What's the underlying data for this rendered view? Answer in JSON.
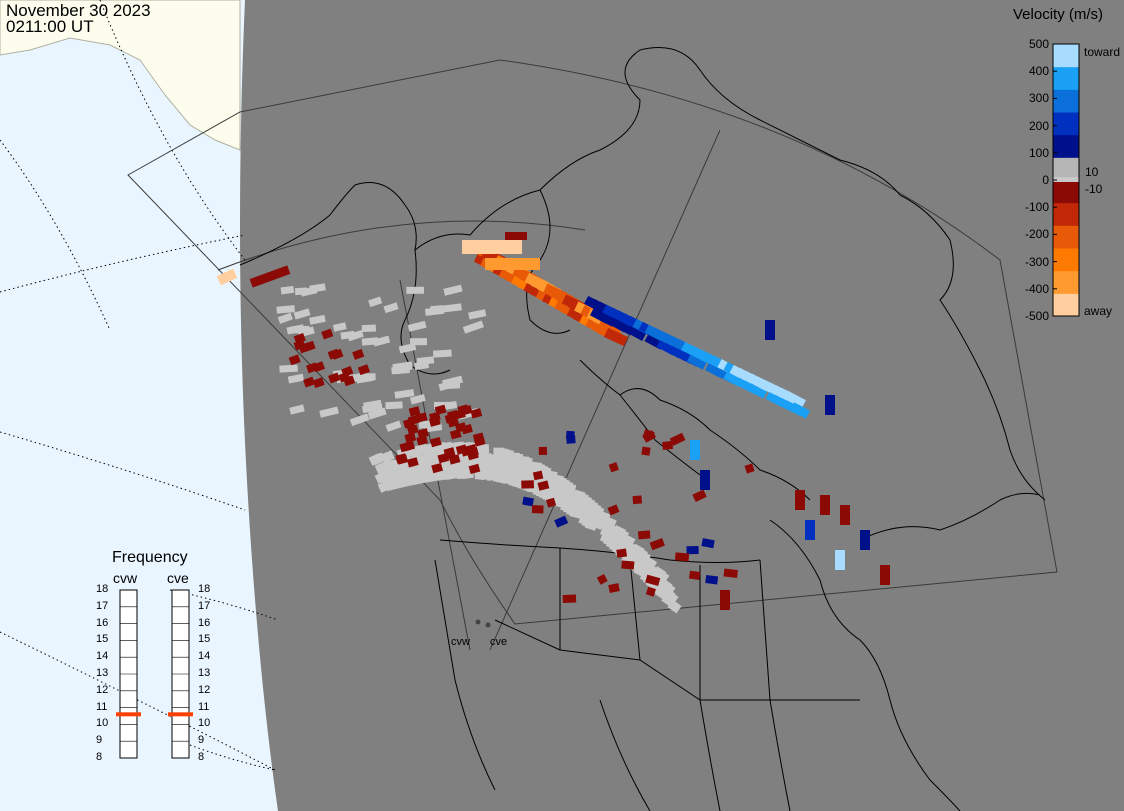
{
  "header": {
    "date": "November 30 2023",
    "time": "0211:00 UT"
  },
  "colorbar": {
    "title": "Velocity (m/s)",
    "ticks": [
      "500",
      "400",
      "300",
      "200",
      "100",
      "0",
      "-100",
      "-200",
      "-300",
      "-400",
      "-500"
    ],
    "toward_label": "toward",
    "away_label": "away",
    "plus_ten": "10",
    "minus_ten": "-10",
    "colors": [
      "#ffcfa0",
      "#ff9a30",
      "#ff7a00",
      "#e85a08",
      "#c02808",
      "#8b0a05",
      "#b5b5b5",
      "#00108a",
      "#0030c0",
      "#0b6fd9",
      "#1aa0f5",
      "#a8dcff"
    ]
  },
  "frequency_panel": {
    "title": "Frequency",
    "radars": [
      {
        "name": "cvw",
        "frequency_mhz": 10.6
      },
      {
        "name": "cve",
        "frequency_mhz": 10.6
      }
    ],
    "ticks": [
      "18",
      "17",
      "16",
      "15",
      "14",
      "13",
      "12",
      "11",
      "10",
      "9",
      "8"
    ],
    "marker_color": "#ff4000"
  },
  "map": {
    "ocean_color": "#eaf6ff",
    "land_color": "#fdfdee",
    "shade_color": "#808080",
    "ground_scatter_color": "#c8c8c8",
    "site_labels": [
      "cvw",
      "cve"
    ]
  }
}
